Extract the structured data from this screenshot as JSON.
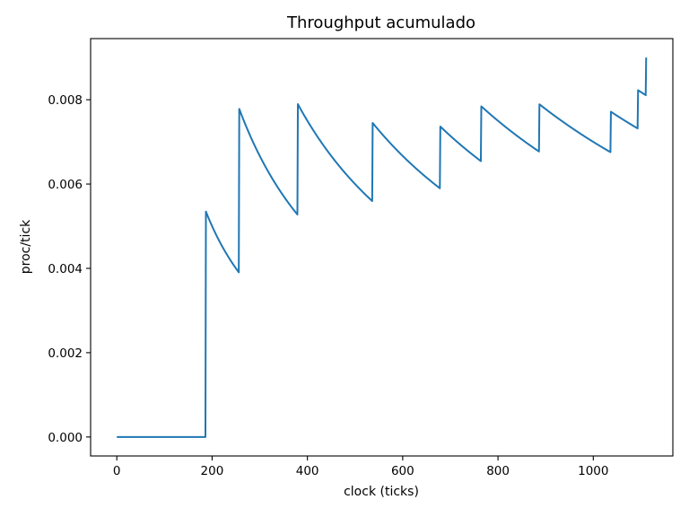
{
  "chart_data": {
    "type": "line",
    "title": "Throughput acumulado",
    "xlabel": "clock (ticks)",
    "ylabel": "proc/tick",
    "xlim": [
      -55,
      1167
    ],
    "ylim": [
      -0.00045,
      0.00945
    ],
    "x_ticks": [
      0,
      200,
      400,
      600,
      800,
      1000
    ],
    "x_tick_labels": [
      "0",
      "200",
      "400",
      "600",
      "800",
      "1000"
    ],
    "y_ticks": [
      0.0,
      0.002,
      0.004,
      0.006,
      0.008
    ],
    "y_tick_labels": [
      "0.000",
      "0.002",
      "0.004",
      "0.006",
      "0.008"
    ],
    "grid": false,
    "series": [
      {
        "name": "throughput",
        "color": "#1f77b4",
        "segments": [
          {
            "start": 0,
            "end": 186,
            "jumps": 0
          },
          {
            "start": 187,
            "end": 256,
            "jumps": 1
          },
          {
            "start": 257,
            "end": 379,
            "jumps": 2
          },
          {
            "start": 380,
            "end": 536,
            "jumps": 3
          },
          {
            "start": 537,
            "end": 678,
            "jumps": 4
          },
          {
            "start": 679,
            "end": 764,
            "jumps": 5
          },
          {
            "start": 765,
            "end": 886,
            "jumps": 6
          },
          {
            "start": 887,
            "end": 1036,
            "jumps": 7
          },
          {
            "start": 1037,
            "end": 1093,
            "jumps": 8
          },
          {
            "start": 1094,
            "end": 1110,
            "jumps": 9
          },
          {
            "start": 1111,
            "end": 1111,
            "jumps": 10
          }
        ]
      }
    ]
  }
}
